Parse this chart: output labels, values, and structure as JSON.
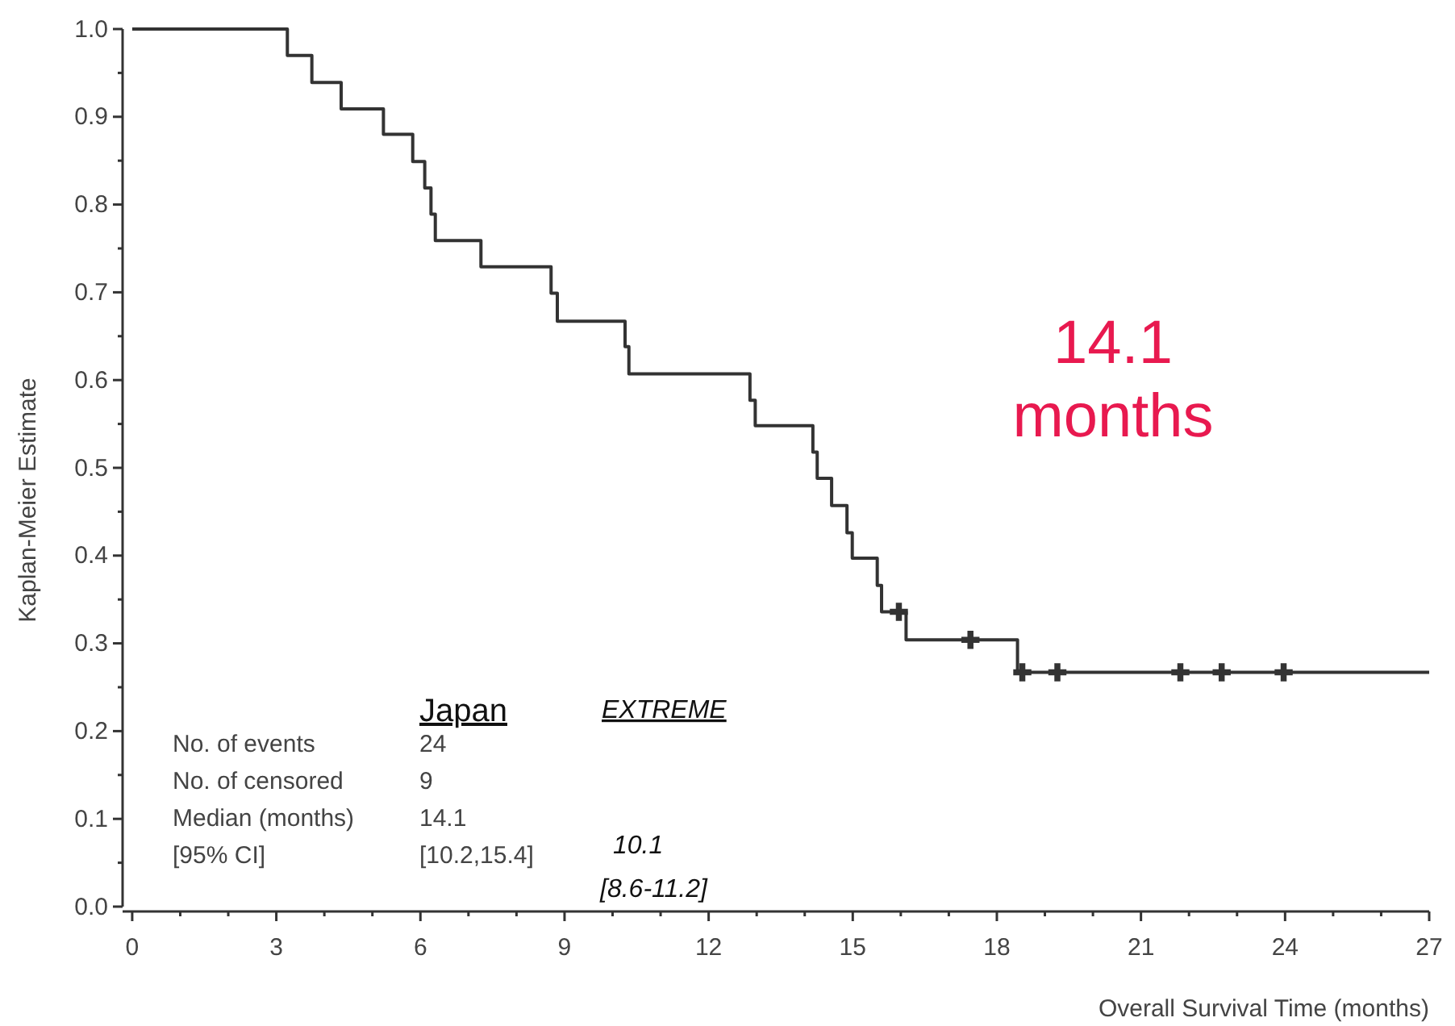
{
  "chart_data": {
    "type": "step",
    "xlabel": "Overall Survival Time (months)",
    "ylabel": "Kaplan-Meier Estimate",
    "xlim": [
      -0.2,
      27
    ],
    "ylim": [
      0,
      1
    ],
    "xticks": [
      0,
      {
        "value": 1,
        "label": null
      },
      {
        "value": 2,
        "label": null
      },
      3,
      {
        "value": 4,
        "label": null
      },
      {
        "value": 5,
        "label": null
      },
      6,
      {
        "value": 7,
        "label": null
      },
      {
        "value": 8,
        "label": null
      },
      9,
      {
        "value": 10,
        "label": null
      },
      {
        "value": 11,
        "label": null
      },
      12,
      {
        "value": 13,
        "label": null
      },
      {
        "value": 14,
        "label": null
      },
      15,
      {
        "value": 16,
        "label": null
      },
      {
        "value": 17,
        "label": null
      },
      18,
      {
        "value": 19,
        "label": null
      },
      {
        "value": 20,
        "label": null
      },
      21,
      {
        "value": 22,
        "label": null
      },
      {
        "value": 23,
        "label": null
      },
      24,
      {
        "value": 25,
        "label": null
      },
      {
        "value": 26,
        "label": null
      },
      27
    ],
    "yticks": [
      {
        "value": 0,
        "label": "0.0"
      },
      {
        "value": 0.05,
        "label": null
      },
      {
        "value": 0.1,
        "label": "0.1"
      },
      {
        "value": 0.15,
        "label": null
      },
      {
        "value": 0.2,
        "label": "0.2"
      },
      {
        "value": 0.25,
        "label": null
      },
      {
        "value": 0.3,
        "label": "0.3"
      },
      {
        "value": 0.35,
        "label": null
      },
      {
        "value": 0.4,
        "label": "0.4"
      },
      {
        "value": 0.45,
        "label": null
      },
      {
        "value": 0.5,
        "label": "0.5"
      },
      {
        "value": 0.55,
        "label": null
      },
      {
        "value": 0.6,
        "label": "0.6"
      },
      {
        "value": 0.65,
        "label": null
      },
      {
        "value": 0.7,
        "label": "0.7"
      },
      {
        "value": 0.75,
        "label": null
      },
      {
        "value": 0.8,
        "label": "0.8"
      },
      {
        "value": 0.85,
        "label": null
      },
      {
        "value": 0.9,
        "label": "0.9"
      },
      {
        "value": 0.95,
        "label": null
      },
      {
        "value": 1,
        "label": "1.0"
      }
    ],
    "grid": false,
    "series": [
      {
        "color": "#333333",
        "marker": "none",
        "line_style": "solid",
        "x": [
          0,
          3.23,
          3.74,
          4.35,
          5.23,
          5.84,
          6.09,
          6.22,
          6.31,
          7.26,
          8.72,
          8.85,
          10.26,
          10.34,
          12.86,
          12.97,
          14.17,
          14.26,
          14.56,
          14.88,
          14.99,
          15.51,
          15.6,
          16.11,
          18.43,
          27
        ],
        "values": [
          1,
          0.97,
          0.939,
          0.909,
          0.88,
          0.849,
          0.819,
          0.789,
          0.759,
          0.729,
          0.699,
          0.667,
          0.638,
          0.607,
          0.577,
          0.548,
          0.518,
          0.488,
          0.457,
          0.426,
          0.397,
          0.366,
          0.336,
          0.304,
          0.267,
          0.267
        ]
      },
      {
        "type": "scatter",
        "color": "#333333",
        "marker": "cross",
        "x": [
          15.96,
          17.45,
          18.53,
          19.26,
          21.82,
          22.68,
          23.97
        ],
        "values": [
          0.336,
          0.304,
          0.267,
          0.267,
          0.267,
          0.267,
          0.267
        ]
      }
    ],
    "annotations": [
      "14.1 months",
      "Japan",
      "EXTREME",
      "No. of events",
      "24",
      "No. of censored",
      "9",
      "Median (months)",
      "14.1",
      "[95% CI]",
      "[10.2,15.4]",
      "10.1",
      "[8.6-11.2]"
    ]
  }
}
